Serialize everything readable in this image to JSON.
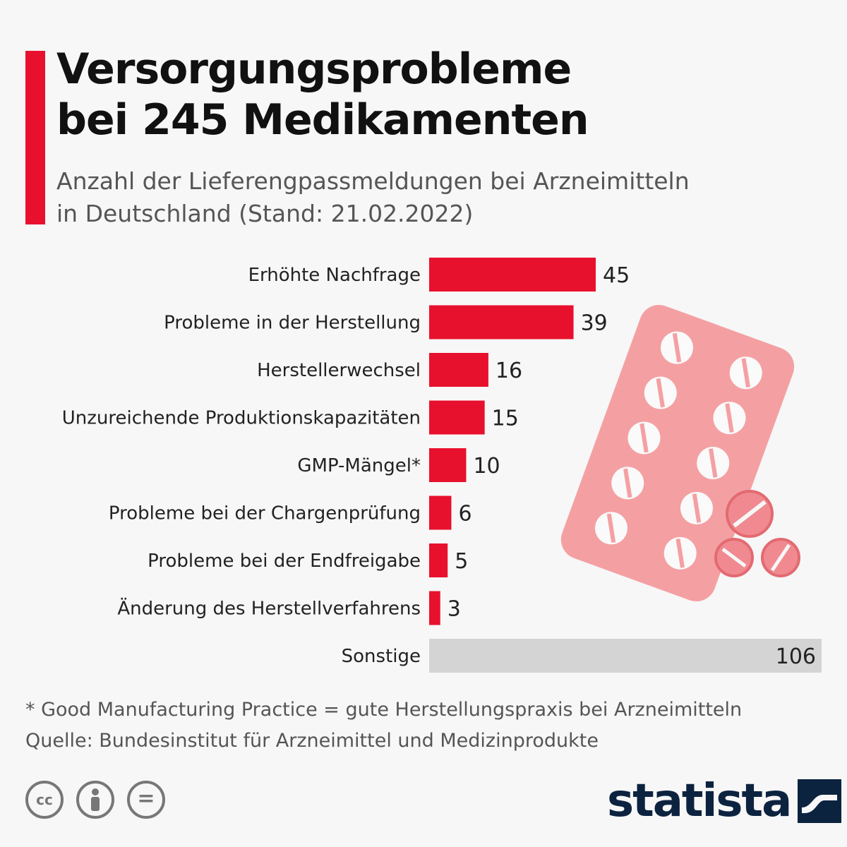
{
  "header": {
    "title": "Versorgungsprobleme\nbei 245 Medikamenten",
    "subtitle": "Anzahl der Lieferengpassmeldungen bei Arzneimitteln\nin Deutschland (Stand: 21.02.2022)"
  },
  "colors": {
    "accent": "#e8112d",
    "bar": "#e8112d",
    "other_bar": "#d4d4d4",
    "pill_pack": "#f4a0a3",
    "text": "#222222",
    "brand": "#0c2340"
  },
  "chart_data": {
    "type": "bar",
    "orientation": "horizontal",
    "title": "Versorgungsprobleme bei 245 Medikamenten",
    "subtitle": "Anzahl der Lieferengpassmeldungen bei Arzneimitteln in Deutschland (Stand: 21.02.2022)",
    "categories": [
      "Erhöhte Nachfrage",
      "Probleme in der Herstellung",
      "Herstellerwechsel",
      "Unzureichende Produktionskapazitäten",
      "GMP-Mängel*",
      "Probleme bei der Chargenprüfung",
      "Probleme bei der Endfreigabe",
      "Änderung des Herstellverfahrens",
      "Sonstige"
    ],
    "values": [
      45,
      39,
      16,
      15,
      10,
      6,
      5,
      3,
      106
    ],
    "highlight": [
      true,
      true,
      true,
      true,
      true,
      true,
      true,
      true,
      false
    ],
    "xlim": [
      0,
      106
    ],
    "grid": false,
    "legend": "none"
  },
  "footer": {
    "footnote": "* Good Manufacturing Practice = gute Herstellungspraxis bei Arzneimitteln",
    "source": "Quelle: Bundesinstitut für Arzneimittel und Medizinprodukte",
    "cc_text": "cc",
    "nd_text": "=",
    "brand": "statista"
  },
  "icons": [
    "pill-blister-pack-icon",
    "pill-icon",
    "cc-license-icon",
    "by-attribution-icon",
    "no-derivatives-icon",
    "statista-logo-icon"
  ]
}
